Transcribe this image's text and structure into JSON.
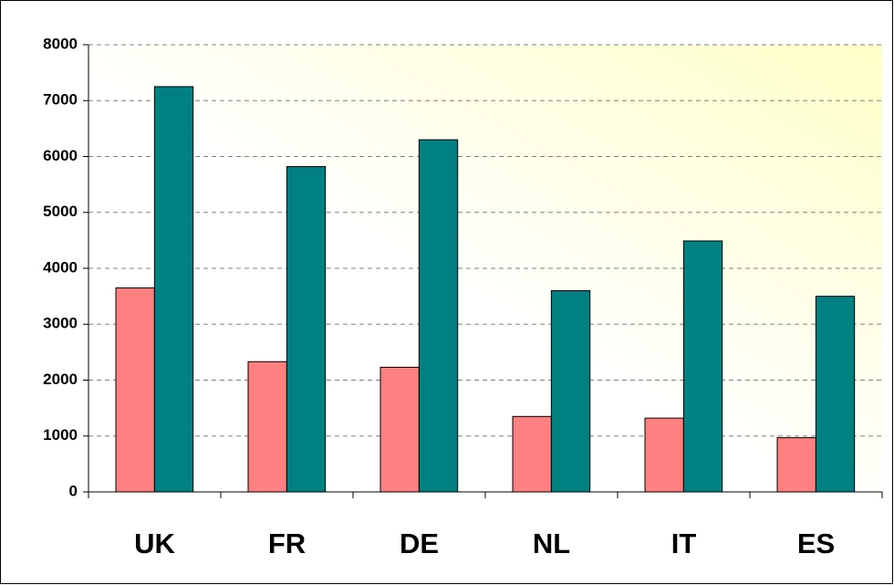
{
  "chart_data": {
    "type": "bar",
    "categories": [
      "UK",
      "FR",
      "DE",
      "NL",
      "IT",
      "ES"
    ],
    "series": [
      {
        "color": "#ff8080",
        "values": [
          3650,
          2330,
          2230,
          1350,
          1320,
          970
        ]
      },
      {
        "color": "#008080",
        "values": [
          7250,
          5820,
          6300,
          3600,
          4490,
          3500
        ]
      }
    ],
    "ylim": [
      0,
      8000
    ],
    "yticks": [
      0,
      1000,
      2000,
      3000,
      4000,
      5000,
      6000,
      7000,
      8000
    ],
    "grid": true
  }
}
